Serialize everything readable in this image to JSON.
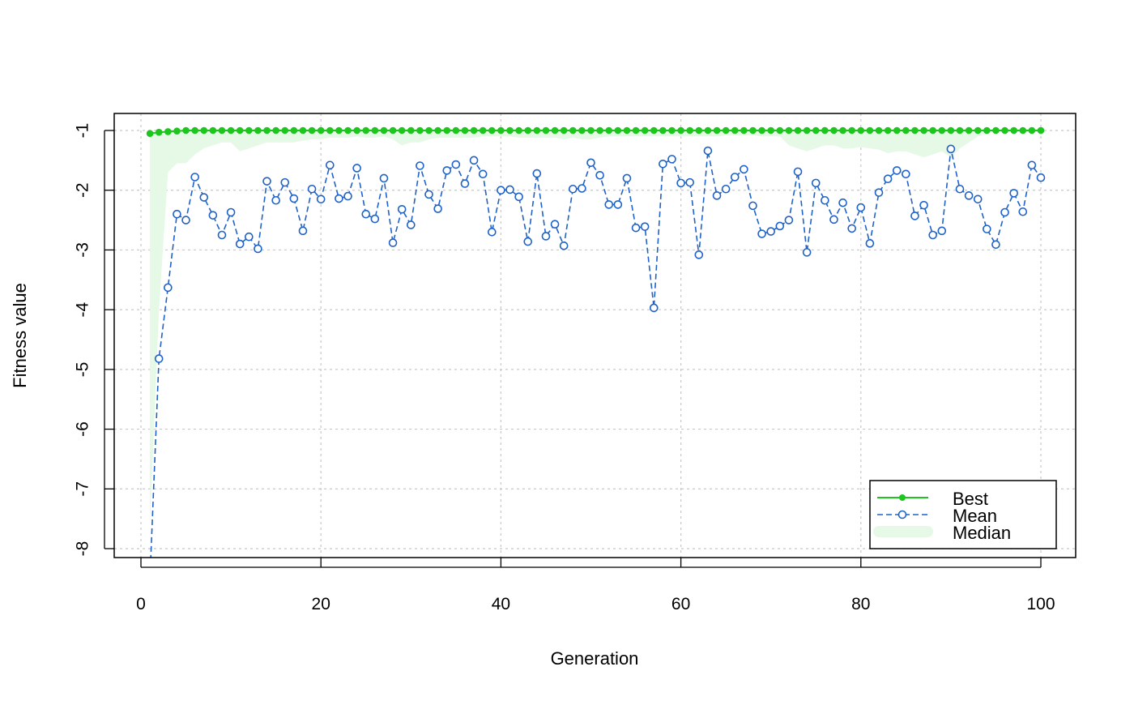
{
  "chart_data": {
    "type": "line",
    "title": "",
    "xlabel": "Generation",
    "ylabel": "Fitness value",
    "xlim": [
      0,
      100
    ],
    "ylim": [
      -8,
      -1
    ],
    "x_ticks": [
      "0",
      "20",
      "40",
      "60",
      "80",
      "100"
    ],
    "y_ticks": [
      "-1",
      "-2",
      "-3",
      "-4",
      "-5",
      "-6",
      "-7",
      "-8"
    ],
    "grid": true,
    "legend_position": "bottom-right",
    "colors": {
      "best": "#1fc51f",
      "mean": "#1f62c9",
      "median_fill": "#e6f8e6"
    },
    "series": [
      {
        "name": "Best",
        "values": [
          -1.05,
          -1.03,
          -1.02,
          -1.01,
          -1.0,
          -1.0,
          -1.0,
          -1.0,
          -1.0,
          -1.0,
          -1.0,
          -1.0,
          -1.0,
          -1.0,
          -1.0,
          -1.0,
          -1.0,
          -1.0,
          -1.0,
          -1.0,
          -1.0,
          -1.0,
          -1.0,
          -1.0,
          -1.0,
          -1.0,
          -1.0,
          -1.0,
          -1.0,
          -1.0,
          -1.0,
          -1.0,
          -1.0,
          -1.0,
          -1.0,
          -1.0,
          -1.0,
          -1.0,
          -1.0,
          -1.0,
          -1.0,
          -1.0,
          -1.0,
          -1.0,
          -1.0,
          -1.0,
          -1.0,
          -1.0,
          -1.0,
          -1.0,
          -1.0,
          -1.0,
          -1.0,
          -1.0,
          -1.0,
          -1.0,
          -1.0,
          -1.0,
          -1.0,
          -1.0,
          -1.0,
          -1.0,
          -1.0,
          -1.0,
          -1.0,
          -1.0,
          -1.0,
          -1.0,
          -1.0,
          -1.0,
          -1.0,
          -1.0,
          -1.0,
          -1.0,
          -1.0,
          -1.0,
          -1.0,
          -1.0,
          -1.0,
          -1.0,
          -1.0,
          -1.0,
          -1.0,
          -1.0,
          -1.0,
          -1.0,
          -1.0,
          -1.0,
          -1.0,
          -1.0,
          -1.0,
          -1.0,
          -1.0,
          -1.0,
          -1.0,
          -1.0,
          -1.0,
          -1.0,
          -1.0,
          -1.0
        ]
      },
      {
        "name": "Mean",
        "values": [
          -8.5,
          -4.82,
          -3.63,
          -2.4,
          -2.5,
          -1.78,
          -2.12,
          -2.42,
          -2.75,
          -2.37,
          -2.9,
          -2.78,
          -2.98,
          -1.85,
          -2.17,
          -1.87,
          -2.14,
          -2.68,
          -1.98,
          -2.15,
          -1.58,
          -2.14,
          -2.1,
          -1.63,
          -2.4,
          -2.48,
          -1.8,
          -2.88,
          -2.32,
          -2.58,
          -1.59,
          -2.07,
          -2.31,
          -1.67,
          -1.57,
          -1.89,
          -1.5,
          -1.73,
          -2.7,
          -2.0,
          -1.99,
          -2.11,
          -2.86,
          -1.72,
          -2.77,
          -2.57,
          -2.93,
          -1.98,
          -1.97,
          -1.54,
          -1.75,
          -2.24,
          -2.24,
          -1.8,
          -2.63,
          -2.61,
          -3.97,
          -1.56,
          -1.48,
          -1.88,
          -1.87,
          -3.08,
          -1.34,
          -2.09,
          -1.98,
          -1.78,
          -1.65,
          -2.26,
          -2.73,
          -2.69,
          -2.6,
          -2.5,
          -1.69,
          -3.04,
          -1.88,
          -2.17,
          -2.49,
          -2.21,
          -2.64,
          -2.29,
          -2.89,
          -2.04,
          -1.81,
          -1.67,
          -1.73,
          -2.43,
          -2.25,
          -2.75,
          -2.68,
          -1.31,
          -1.98,
          -2.09,
          -2.15,
          -2.65,
          -2.91,
          -2.37,
          -2.05,
          -2.36,
          -1.58,
          -1.79
        ]
      },
      {
        "name": "Median",
        "values": [
          -7.6,
          -4.0,
          -1.7,
          -1.55,
          -1.55,
          -1.4,
          -1.3,
          -1.25,
          -1.2,
          -1.2,
          -1.35,
          -1.3,
          -1.25,
          -1.2,
          -1.2,
          -1.2,
          -1.2,
          -1.17,
          -1.15,
          -1.15,
          -1.12,
          -1.12,
          -1.12,
          -1.1,
          -1.12,
          -1.12,
          -1.1,
          -1.15,
          -1.25,
          -1.2,
          -1.2,
          -1.15,
          -1.12,
          -1.12,
          -1.12,
          -1.12,
          -1.12,
          -1.1,
          -1.1,
          -1.1,
          -1.1,
          -1.12,
          -1.12,
          -1.12,
          -1.12,
          -1.12,
          -1.15,
          -1.12,
          -1.15,
          -1.15,
          -1.12,
          -1.1,
          -1.1,
          -1.1,
          -1.1,
          -1.1,
          -1.1,
          -1.1,
          -1.1,
          -1.1,
          -1.1,
          -1.1,
          -1.1,
          -1.1,
          -1.08,
          -1.08,
          -1.08,
          -1.08,
          -1.1,
          -1.1,
          -1.1,
          -1.25,
          -1.3,
          -1.35,
          -1.3,
          -1.25,
          -1.25,
          -1.3,
          -1.3,
          -1.28,
          -1.3,
          -1.32,
          -1.38,
          -1.35,
          -1.35,
          -1.4,
          -1.45,
          -1.4,
          -1.35,
          -1.45,
          -1.3,
          -1.2,
          -1.1,
          -1.05,
          -1.02,
          -1.02,
          -1.02,
          -1.02,
          -1.02,
          -1.02
        ]
      }
    ]
  }
}
